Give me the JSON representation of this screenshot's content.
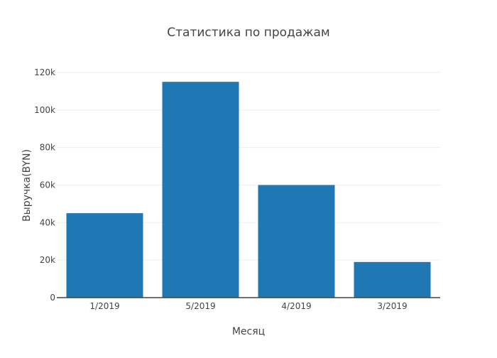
{
  "chart_data": {
    "type": "bar",
    "title": "Статистика по продажам",
    "xlabel": "Месяц",
    "ylabel": "Выручка(BYN)",
    "categories": [
      "1/2019",
      "5/2019",
      "4/2019",
      "3/2019"
    ],
    "values": [
      45000,
      115000,
      60000,
      19000
    ],
    "ylim": [
      0,
      120000
    ],
    "yticks": [
      0,
      20000,
      40000,
      60000,
      80000,
      100000,
      120000
    ],
    "ytick_labels": [
      "0",
      "20k",
      "40k",
      "60k",
      "80k",
      "100k",
      "120k"
    ],
    "grid": true,
    "legend": "none",
    "colors": {
      "bar": "#1f77b4",
      "grid": "#eeeeee",
      "axis_line": "#444444",
      "text": "#444444"
    }
  }
}
